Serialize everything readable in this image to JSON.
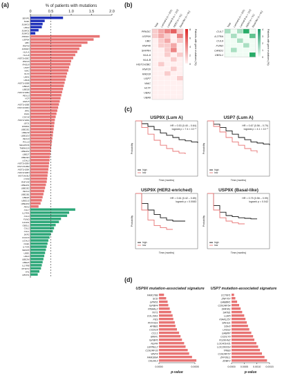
{
  "panels": {
    "a": "(a)",
    "b": "(b)",
    "c": "(c)",
    "d": "(d)"
  },
  "colors": {
    "blue": "#2233bb",
    "red": "#e87474",
    "green": "#2fa87a",
    "black": "#111111",
    "gray": "#888888"
  },
  "chart_data": [
    {
      "type": "bar",
      "orientation": "horizontal",
      "title": "% of patients with mutations",
      "xlim": [
        0,
        2
      ],
      "xticks": [
        "0",
        "0.5",
        "1.0",
        "1.5",
        "2.0"
      ],
      "reference_line": 0.5,
      "groups": [
        {
          "color": "blue",
          "genes": [
            "SENP1",
            "SAE1",
            "SUMO3",
            "UBA2",
            "SUMO1",
            "SUMO2"
          ],
          "values": [
            0.8,
            0.35,
            0.3,
            0.28,
            0.2,
            0.12
          ]
        },
        {
          "color": "red",
          "genes": [
            "PRKDC",
            "USP9X",
            "UBC",
            "RNF40",
            "SHPRH",
            "HLA-A",
            "HLA-B",
            "HIST1H2BC",
            "RNF20",
            "RAD18",
            "USP7",
            "WAC",
            "HLTF",
            "UBA1",
            "UBA6",
            "HIST1H2BB",
            "UBE2A",
            "UBE2B",
            "HIST1H2BD",
            "PEX13",
            "VCP",
            "USP15",
            "HIST1H2BE",
            "HIST1H2BO",
            "IRF1",
            "PAF1",
            "CDC34",
            "HIST1H2BA",
            "LEO1",
            "WDR61",
            "UBE2E1",
            "UBE2W",
            "UBE2D3",
            "PEX10",
            "PCL10",
            "SELENOS",
            "TMEM129",
            "UBE2D2",
            "UBE2T",
            "UBE2E3",
            "UCHL3",
            "HIST1H2BN",
            "HIST1H2BM",
            "HIST1H2BK",
            "HIST1H2BH",
            "HIST1H2BJ",
            "CTR9",
            "RNF144",
            "UBE2D1",
            "UBE2E2",
            "PEX14",
            "UBE2B1",
            "UBE2K",
            "UBE2J2",
            "UBE2D4",
            "PEX2"
          ],
          "values": [
            1.7,
            1.55,
            1.4,
            1.25,
            1.2,
            1.15,
            1.1,
            1.05,
            1.0,
            0.98,
            0.95,
            0.93,
            0.9,
            0.88,
            0.86,
            0.84,
            0.82,
            0.8,
            0.78,
            0.76,
            0.74,
            0.72,
            0.7,
            0.68,
            0.66,
            0.64,
            0.62,
            0.6,
            0.59,
            0.58,
            0.57,
            0.56,
            0.55,
            0.54,
            0.53,
            0.52,
            0.51,
            0.5,
            0.49,
            0.48,
            0.47,
            0.46,
            0.45,
            0.44,
            0.43,
            0.42,
            0.41,
            0.4,
            0.38,
            0.36,
            0.34,
            0.32,
            0.3,
            0.28,
            0.25,
            0.2
          ]
        },
        {
          "color": "green",
          "genes": [
            "CUL7",
            "IL27RA",
            "CUL9",
            "FUND",
            "CAND1",
            "OBSL1",
            "CUL2",
            "CUL1",
            "SKP2",
            "CCDC8",
            "UCHL5",
            "NAE1",
            "IL7-RA",
            "NEDD8",
            "UBE1",
            "UBA3",
            "UBE2M",
            "UBE2F",
            "IL17RB",
            "MYEOV",
            "VHL",
            "UBXN1"
          ],
          "values": [
            1.1,
            0.95,
            0.9,
            0.75,
            0.7,
            0.62,
            0.58,
            0.55,
            0.5,
            0.47,
            0.44,
            0.42,
            0.4,
            0.38,
            0.36,
            0.34,
            0.32,
            0.3,
            0.28,
            0.26,
            0.22,
            0.18
          ]
        }
      ]
    },
    {
      "type": "heatmap",
      "legend_title": "Patients with gene mutations (%)",
      "columns": [
        "Total",
        "Luminal A (n = 201)",
        "Luminal B (n = 122)",
        "HER2 (n = 51)",
        "Basal-like (n = 91)"
      ],
      "rows": [
        "PRKDC",
        "USP9X",
        "UBC",
        "RNF40",
        "SHPRH",
        "HLA-A",
        "HLA-B",
        "HIST1H2BC",
        "RNF20",
        "RAD18",
        "USP7",
        "WAC",
        "HLTF",
        "UBA1",
        "UBA6"
      ],
      "values": [
        [
          2,
          3,
          4,
          5,
          2
        ],
        [
          2,
          3,
          2,
          1,
          4
        ],
        [
          1,
          2,
          3,
          1,
          2
        ],
        [
          1,
          2,
          2,
          3,
          1
        ],
        [
          1,
          1,
          2,
          4,
          1
        ],
        [
          1,
          1,
          2,
          1,
          2
        ],
        [
          1,
          1,
          1,
          2,
          1
        ],
        [
          1,
          2,
          1,
          1,
          1
        ],
        [
          1,
          1,
          1,
          2,
          1
        ],
        [
          1,
          1,
          2,
          1,
          1
        ],
        [
          1,
          1,
          1,
          1,
          2
        ],
        [
          1,
          1,
          1,
          1,
          1
        ],
        [
          1,
          1,
          1,
          1,
          1
        ],
        [
          1,
          1,
          1,
          1,
          1
        ],
        [
          1,
          1,
          1,
          1,
          1
        ]
      ],
      "scale": [
        "0",
        "2",
        "4",
        "6",
        "8"
      ]
    },
    {
      "type": "heatmap",
      "legend_title": "Patients with gene mutations (%)",
      "columns": [
        "Total",
        "Luminal A (n = 201)",
        "Luminal B (n = 122)",
        "HER2 (n = 51)",
        "Basal-like (n = 91)"
      ],
      "rows": [
        "CUL7",
        "IL27RA",
        "CUL9",
        "FUND",
        "CAND1",
        "OBSL1"
      ],
      "values": [
        [
          2,
          1,
          2,
          4,
          1
        ],
        [
          1,
          2,
          1,
          1,
          3
        ],
        [
          1,
          1,
          2,
          1,
          1
        ],
        [
          1,
          1,
          1,
          2,
          1
        ],
        [
          1,
          2,
          1,
          1,
          1
        ],
        [
          1,
          1,
          1,
          1,
          5
        ]
      ],
      "scale": [
        "0",
        "1",
        "2",
        "3",
        "4"
      ]
    },
    {
      "type": "line",
      "title": "USP9X (Lum A)",
      "stat": "HR = 0.53 (0.40 – 0.64)",
      "stat2": "logrank p = 7.4 × 10⁻⁶",
      "xlabel": "Time (months)",
      "ylabel": "Probability",
      "xlim": [
        0,
        300
      ],
      "ylim": [
        0,
        1
      ],
      "series": [
        {
          "name": "high",
          "color": "black",
          "x": [
            0,
            30,
            60,
            90,
            120,
            150,
            180,
            210,
            240,
            270,
            300
          ],
          "y": [
            1,
            0.95,
            0.9,
            0.84,
            0.78,
            0.74,
            0.7,
            0.66,
            0.64,
            0.62,
            0.6
          ]
        },
        {
          "name": "low",
          "color": "red",
          "x": [
            0,
            30,
            60,
            90,
            120,
            150,
            180,
            210,
            240
          ],
          "y": [
            1,
            0.88,
            0.76,
            0.65,
            0.56,
            0.5,
            0.45,
            0.42,
            0.4
          ]
        }
      ]
    },
    {
      "type": "line",
      "title": "USP7 (Lum A)",
      "stat": "HR = 0.67 (0.56 – 0.79)",
      "stat2": "logrank p = 4.1 × 10⁻⁶",
      "xlabel": "Time (months)",
      "ylabel": "Probability",
      "xlim": [
        0,
        300
      ],
      "ylim": [
        0,
        1
      ],
      "series": [
        {
          "name": "high",
          "color": "black",
          "x": [
            0,
            30,
            60,
            90,
            120,
            150,
            180,
            210,
            240,
            270,
            300
          ],
          "y": [
            1,
            0.94,
            0.88,
            0.82,
            0.76,
            0.7,
            0.66,
            0.62,
            0.6,
            0.58,
            0.56
          ]
        },
        {
          "name": "low",
          "color": "red",
          "x": [
            0,
            30,
            60,
            90,
            120,
            150,
            180,
            210,
            240
          ],
          "y": [
            1,
            0.9,
            0.8,
            0.7,
            0.62,
            0.56,
            0.5,
            0.46,
            0.42
          ]
        }
      ]
    },
    {
      "type": "line",
      "title": "USP9X (HER2-enriched)",
      "stat": "HR = 0.61 (0.42 – 0.89)",
      "stat2": "logrank p = 0.0083",
      "xlabel": "Time (months)",
      "ylabel": "Probability",
      "xlim": [
        0,
        200
      ],
      "ylim": [
        0,
        1
      ],
      "series": [
        {
          "name": "high",
          "color": "black",
          "x": [
            0,
            20,
            40,
            60,
            80,
            100,
            120,
            140,
            160
          ],
          "y": [
            1,
            0.82,
            0.7,
            0.62,
            0.56,
            0.52,
            0.5,
            0.5,
            0.5
          ]
        },
        {
          "name": "low",
          "color": "red",
          "x": [
            0,
            20,
            40,
            60,
            80,
            100,
            120
          ],
          "y": [
            1,
            0.7,
            0.52,
            0.42,
            0.38,
            0.35,
            0.35
          ]
        }
      ]
    },
    {
      "type": "line",
      "title": "USP9X (Basal-like)",
      "stat": "HR = 0.75 (0.56 – 0.99)",
      "stat2": "logrank p = 0.042",
      "xlabel": "Time (months)",
      "ylabel": "Probability",
      "xlim": [
        0,
        300
      ],
      "ylim": [
        0,
        1
      ],
      "series": [
        {
          "name": "high",
          "color": "black",
          "x": [
            0,
            30,
            60,
            90,
            120,
            150,
            180,
            210,
            240
          ],
          "y": [
            1,
            0.78,
            0.66,
            0.6,
            0.58,
            0.56,
            0.55,
            0.54,
            0.54
          ]
        },
        {
          "name": "low",
          "color": "red",
          "x": [
            0,
            30,
            60,
            90,
            120,
            150,
            180
          ],
          "y": [
            1,
            0.7,
            0.56,
            0.5,
            0.47,
            0.45,
            0.45
          ]
        }
      ]
    },
    {
      "type": "bar",
      "orientation": "horizontal",
      "title": "USP9X mutation-associated signature",
      "xlabel": "p-value",
      "xlim": [
        0,
        0.0005
      ],
      "xticks": [
        "0.0000",
        "0.0005"
      ],
      "categories": [
        "FAM178B",
        "SCD",
        "GPR61",
        "IGFBP4",
        "PNMAL2",
        "TKT1",
        "COL15A1",
        "FES",
        "PHYHD1",
        "APBB1",
        "CCDC8",
        "CCL1",
        "BNIPL",
        "IGFBP6",
        "NGFR",
        "LEPREL2",
        "C19ORF33",
        "WNT4",
        "FAM189A",
        "CALML3"
      ],
      "values": [
        7e-05,
        0.0001,
        0.00012,
        0.00013,
        0.00015,
        0.00017,
        0.00019,
        0.0002,
        0.00022,
        0.00023,
        0.00025,
        0.00028,
        0.0003,
        0.00032,
        0.00035,
        0.00037,
        0.0004,
        0.00042,
        0.00046,
        0.00052
      ]
    },
    {
      "type": "bar",
      "orientation": "horizontal",
      "title": "USP7 mutation-associated signature",
      "xlabel": "p-value",
      "xlim": [
        0,
        0.0015
      ],
      "xticks": [
        "0.0000",
        "0.0005",
        "0.0010",
        "0.0015"
      ],
      "categories": [
        "CCT6P1",
        "ZNF767",
        "GABBR1",
        "C20ORF54",
        "SPATA1",
        "SATB1",
        "LGR5",
        "KIAA1257",
        "SNHG1",
        "SSH3",
        "LASS2",
        "GABRP",
        "CCDC70",
        "PLEKHN2",
        "LOC401431",
        "LOC283314",
        "TRIB3",
        "C19ORF57",
        "ZFP36L1",
        "ZDBF2"
      ],
      "values": [
        0.0001,
        0.00015,
        0.00022,
        0.0003,
        0.00036,
        0.00042,
        0.0005,
        0.00055,
        0.0006,
        0.00065,
        0.0007,
        0.00078,
        0.00085,
        0.0009,
        0.00098,
        0.00105,
        0.00112,
        0.0012,
        0.0013,
        0.0014
      ]
    }
  ]
}
